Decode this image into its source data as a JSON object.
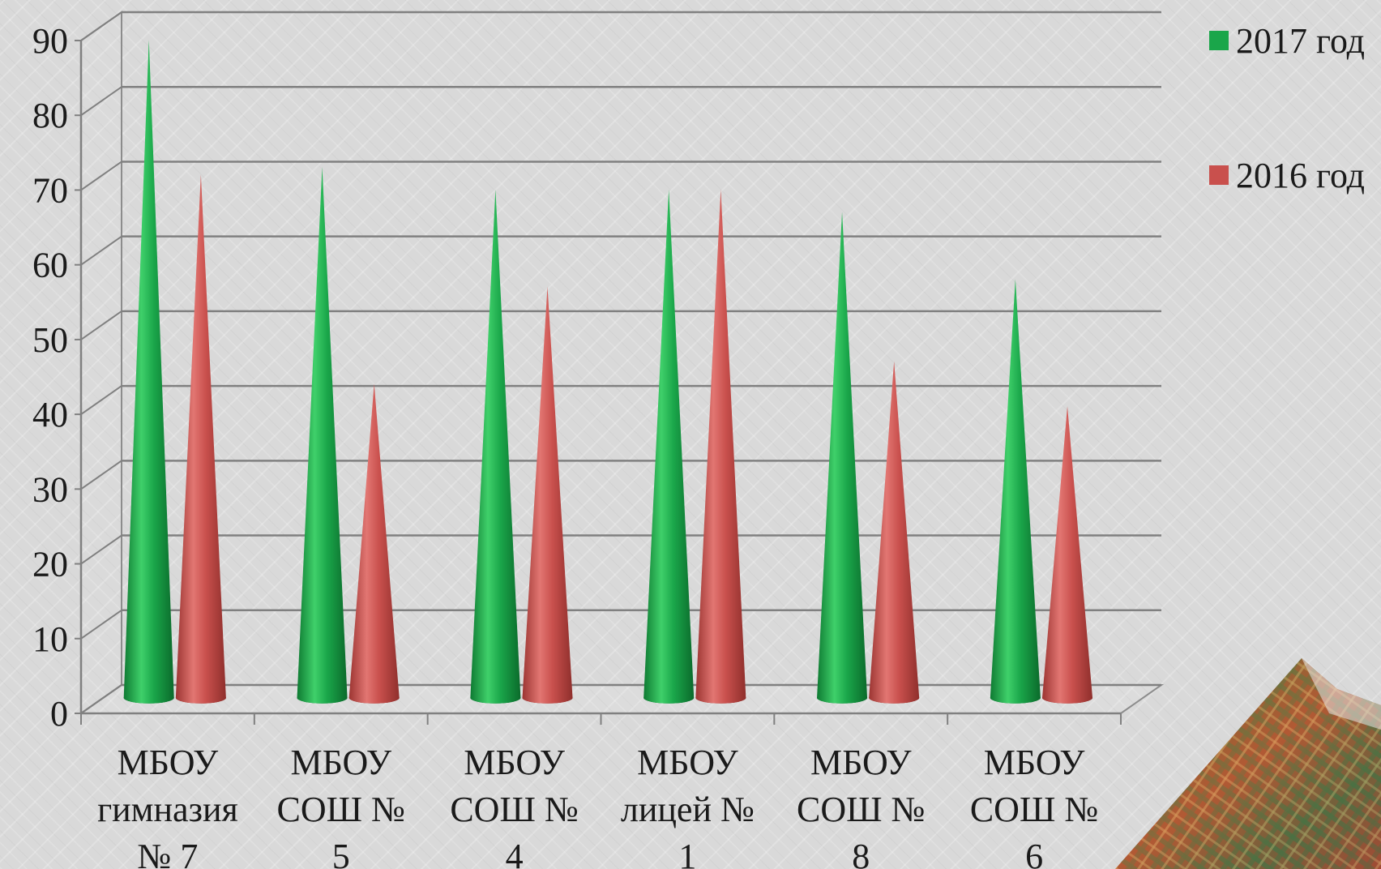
{
  "chart_data": {
    "type": "bar",
    "shape": "cone",
    "categories": [
      [
        "МБОУ",
        "гимназия",
        "№ 7"
      ],
      [
        "МБОУ",
        "СОШ №",
        "5"
      ],
      [
        "МБОУ",
        "СОШ №",
        "4"
      ],
      [
        "МБОУ",
        "лицей №",
        "1"
      ],
      [
        "МБОУ",
        "СОШ №",
        "8"
      ],
      [
        "МБОУ",
        "СОШ №",
        "6"
      ]
    ],
    "series": [
      {
        "name": "2017 год",
        "values": [
          88,
          71,
          68,
          68,
          65,
          56
        ],
        "color": "#1aa64a"
      },
      {
        "name": "2016 год",
        "values": [
          70,
          42,
          55,
          68,
          45,
          39
        ],
        "color": "#c9504d"
      }
    ],
    "ylim": [
      0,
      90
    ],
    "yticks": [
      "0",
      "10",
      "20",
      "30",
      "40",
      "50",
      "60",
      "70",
      "80",
      "90"
    ],
    "grid": true,
    "legend_position": "right",
    "title": "",
    "xlabel": "",
    "ylabel": ""
  }
}
